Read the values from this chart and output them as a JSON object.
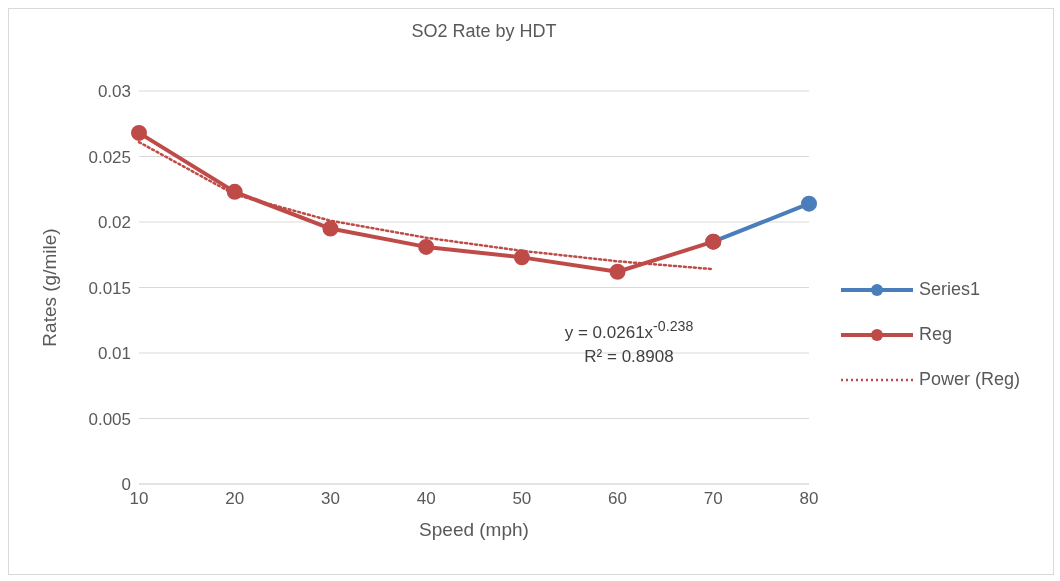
{
  "chart_data": {
    "type": "line",
    "title": "SO2 Rate by HDT",
    "xlabel": "Speed (mph)",
    "ylabel": "Rates (g/mile)",
    "categories": [
      "10",
      "20",
      "30",
      "40",
      "50",
      "60",
      "70",
      "80"
    ],
    "series": [
      {
        "name": "Series1",
        "color": "#4a7ebb",
        "values": [
          null,
          null,
          null,
          null,
          null,
          null,
          0.0185,
          0.0214
        ]
      },
      {
        "name": "Reg",
        "color": "#be4b48",
        "values": [
          0.0268,
          0.0223,
          0.0195,
          0.0181,
          0.0173,
          0.0162,
          0.0185,
          null
        ]
      },
      {
        "name": "Power (Reg)",
        "color": "#be4b48",
        "line_style": "dotted",
        "marker": "none",
        "values": [
          0.0261,
          0.0221,
          0.0201,
          0.0188,
          0.0178,
          0.017,
          0.0164,
          null
        ]
      }
    ],
    "ylim": [
      0,
      0.03
    ],
    "yticks": [
      0,
      0.005,
      0.01,
      0.015,
      0.02,
      0.025,
      0.03
    ],
    "grid": "y",
    "legend": "right",
    "marker": "circle",
    "line_style": "solid",
    "annotations": [
      "y = 0.0261x$^{-0.238}$",
      "R² = 0.8908"
    ]
  }
}
